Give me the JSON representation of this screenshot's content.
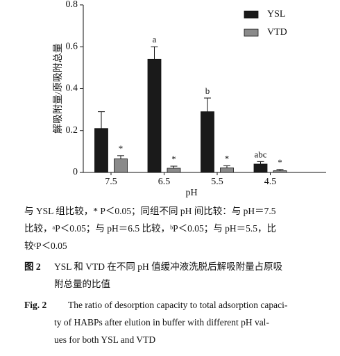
{
  "chart_data": {
    "type": "bar",
    "y_label": "解吸附量/原吸附总量",
    "x_label": "pH",
    "categories": [
      "7.5",
      "6.5",
      "5.5",
      "4.5"
    ],
    "series": [
      {
        "name": "YSL",
        "color": "#1a1a1a",
        "values": [
          0.21,
          0.54,
          0.29,
          0.04
        ],
        "errors": [
          0.08,
          0.06,
          0.065,
          0.012
        ],
        "annotations": [
          null,
          "a",
          "b",
          "abc"
        ]
      },
      {
        "name": "VTD",
        "color": "#8a8a8a",
        "values": [
          0.065,
          0.02,
          0.022,
          0.008
        ],
        "errors": [
          0.015,
          0.01,
          0.01,
          0.006
        ],
        "annotations": [
          "*",
          "*",
          "*",
          "*"
        ]
      }
    ],
    "ylim": [
      0,
      0.8
    ],
    "yticks": [
      0,
      0.2,
      0.4,
      0.6,
      0.8
    ],
    "legend": "upper right"
  },
  "caption": {
    "notes": [
      "与 YSL 组比较，* P＜0.05；同组不同 pH 间比较：与 pH＝7.5",
      "比较，ᵃP＜0.05；与 pH＝6.5 比较，ᵇP＜0.05；与 pH＝5.5，比",
      "较ᶜP＜0.05"
    ],
    "cn_label": "图 2",
    "cn_lines": [
      "YSL 和 VTD 在不同 pH 值缓冲液洗脱后解吸附量占原吸",
      "附总量的比值"
    ],
    "en_label": "Fig. 2",
    "en_lines": [
      "The ratio of desorption capacity to total adsorption capaci-",
      "ty of HABPs after elution in buffer with different pH val-",
      "ues for both YSL and VTD"
    ]
  }
}
